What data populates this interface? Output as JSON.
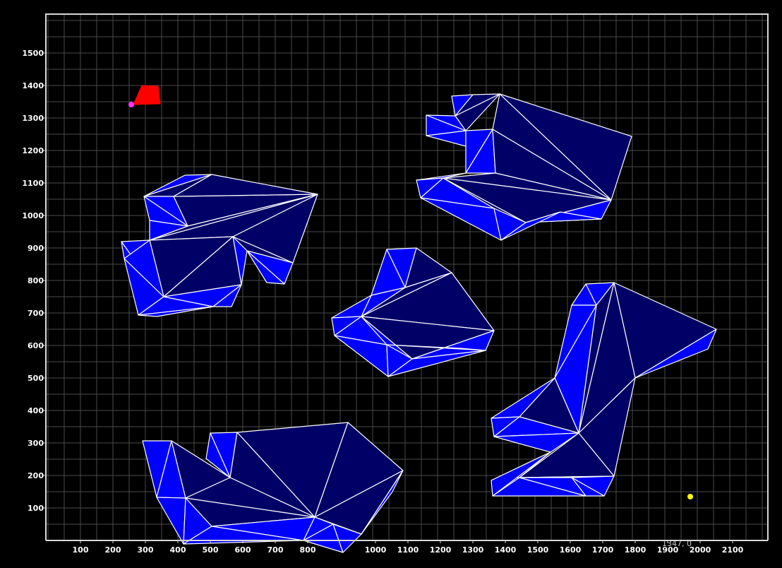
{
  "app": {
    "background_color": "#000000",
    "grid_color": "#4a4a4a",
    "frame_color": "#d8d8d8",
    "edge_color": "#ffffff",
    "face_color_light": "#0000ff",
    "face_color_dark": "#000066"
  },
  "viewer": {
    "x_ticks": [
      "100",
      "200",
      "300",
      "400",
      "500",
      "600",
      "700",
      "800",
      "1000",
      "1100",
      "1200",
      "1300",
      "1400",
      "1500",
      "1600",
      "1700",
      "1800",
      "1900",
      "2000",
      "2100"
    ],
    "y_ticks": [
      "100",
      "200",
      "300",
      "400",
      "500",
      "600",
      "700",
      "800",
      "900",
      "1000",
      "1100",
      "1200",
      "1300",
      "1400",
      "1500"
    ],
    "cursor_readout": "1347, 0",
    "start_marker": {
      "label": "start-point",
      "color": "#ff33ff"
    },
    "goal_marker": {
      "label": "goal-point",
      "color": "#ffff00"
    },
    "robot": {
      "color": "#ff0000"
    }
  }
}
